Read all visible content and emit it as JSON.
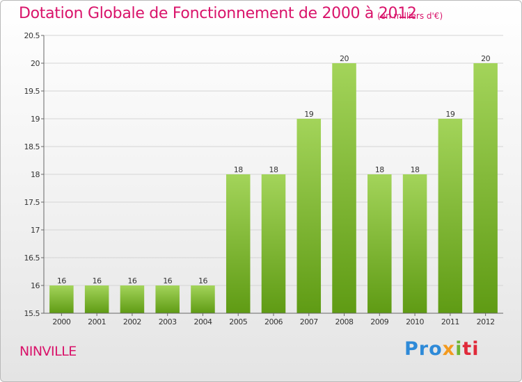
{
  "header": {
    "title": "Dotation Globale de Fonctionnement de 2000 à 2012",
    "unit": "(en milliers d'€)"
  },
  "footer": {
    "commune": "NINVILLE",
    "logo": {
      "part1": "Pro",
      "part2": "x",
      "part3": "i",
      "part4": "ti"
    }
  },
  "colors": {
    "title": "#d9136a",
    "bar_top": "#a3d45a",
    "bar_bottom": "#5f9b14",
    "grid": "#d4d4d4"
  },
  "chart_data": {
    "type": "bar",
    "title": "Dotation Globale de Fonctionnement de 2000 à 2012",
    "subtitle": "(en milliers d'€)",
    "xlabel": "",
    "ylabel": "",
    "categories": [
      "2000",
      "2001",
      "2002",
      "2003",
      "2004",
      "2005",
      "2006",
      "2007",
      "2008",
      "2009",
      "2010",
      "2011",
      "2012"
    ],
    "values": [
      16,
      16,
      16,
      16,
      16,
      18,
      18,
      19,
      20,
      18,
      18,
      19,
      20
    ],
    "data_labels": [
      "16",
      "16",
      "16",
      "16",
      "16",
      "18",
      "18",
      "19",
      "20",
      "18",
      "18",
      "19",
      "20"
    ],
    "ylim": [
      15.5,
      20.5
    ],
    "yticks": [
      15.5,
      16,
      16.5,
      17,
      17.5,
      18,
      18.5,
      19,
      19.5,
      20,
      20.5
    ],
    "ytick_labels": [
      "15.5",
      "16",
      "16.5",
      "17",
      "17.5",
      "18",
      "18.5",
      "19",
      "19.5",
      "20",
      "20.5"
    ],
    "grid": true,
    "legend": false
  }
}
